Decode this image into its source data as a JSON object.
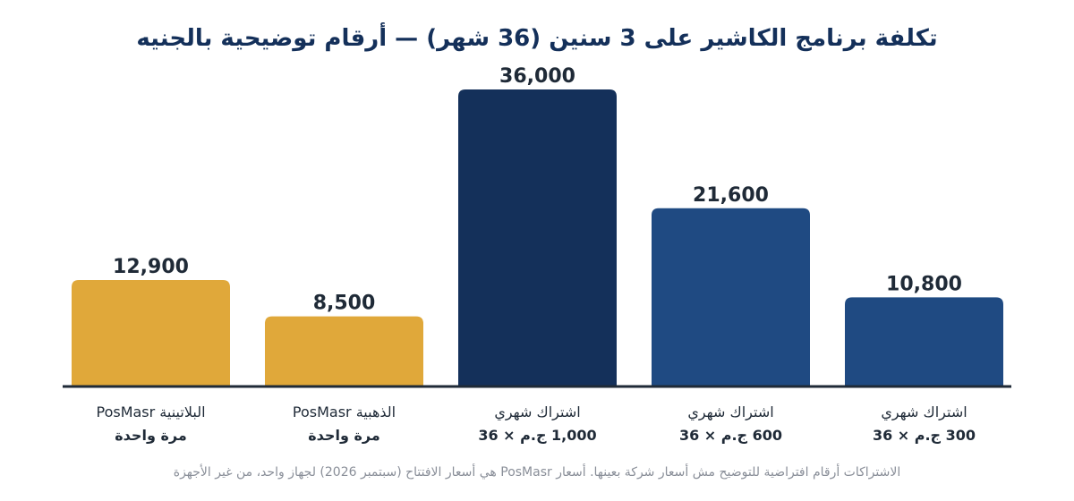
{
  "chart_data": {
    "type": "bar",
    "title": "تكلفة برنامج الكاشير على 3 سنين (36 شهر) — أرقام توضيحية بالجنيه",
    "footnote": "الاشتراكات أرقام افتراضية للتوضيح مش أسعار شركة بعينها. أسعار PosMasr هي أسعار الافتتاح (سبتمبر 2026) لجهاز واحد، من غير الأجهزة",
    "categories": [
      {
        "line1": "البلاتينية PosMasr",
        "line2": "مرة واحدة"
      },
      {
        "line1": "الذهبية PosMasr",
        "line2": "مرة واحدة"
      },
      {
        "line1": "اشتراك شهري",
        "line2": "1,000 ج.م × 36"
      },
      {
        "line1": "اشتراك شهري",
        "line2": "600 ج.م × 36"
      },
      {
        "line1": "اشتراك شهري",
        "line2": "300 ج.م × 36"
      }
    ],
    "values": [
      12900,
      8500,
      36000,
      21600,
      10800
    ],
    "value_labels": [
      "12,900",
      "8,500",
      "36,000",
      "21,600",
      "10,800"
    ],
    "colors": [
      "#e0a83a",
      "#e0a83a",
      "#14305a",
      "#1f4a82",
      "#1f4a82"
    ],
    "ylim": [
      0,
      36000
    ],
    "grid": false,
    "xlabel": "",
    "ylabel": ""
  }
}
